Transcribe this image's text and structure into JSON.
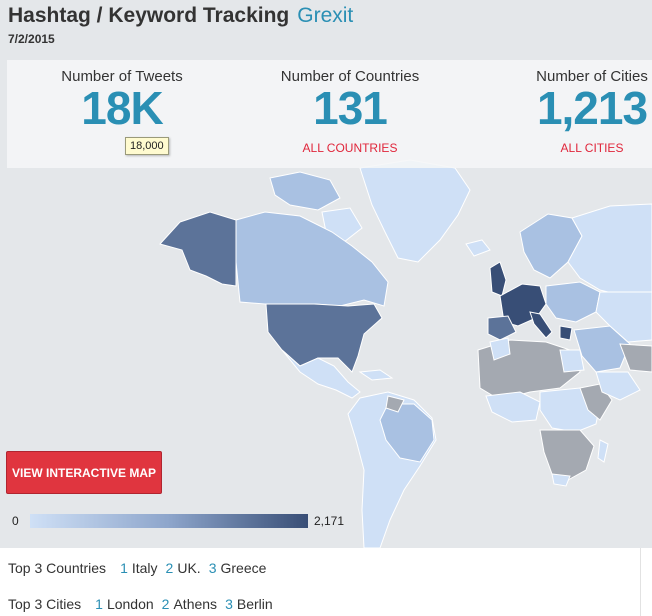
{
  "header": {
    "title": "Hashtag / Keyword Tracking",
    "keyword": "Grexit",
    "date": "7/2/2015"
  },
  "stats": {
    "tweets": {
      "label": "Number of Tweets",
      "value": "18K",
      "tooltip": "18,000"
    },
    "countries": {
      "label": "Number of Countries",
      "value": "131",
      "link": "ALL COUNTRIES"
    },
    "cities": {
      "label": "Number of Cities",
      "value": "1,213",
      "link": "ALL CITIES"
    }
  },
  "map": {
    "button_label": "VIEW INTERACTIVE MAP",
    "legend": {
      "min": "0",
      "max": "2,171"
    },
    "colors": {
      "background": "#e4e7ea",
      "no_data": "#a4a9b1",
      "light": "#cfe0f6",
      "medium": "#a9c1e2",
      "dark": "#5c7399",
      "darkest": "#384e76"
    }
  },
  "top": {
    "countries": {
      "label": "Top 3 Countries",
      "items": [
        {
          "rank": "1",
          "name": "Italy"
        },
        {
          "rank": "2",
          "name": "UK."
        },
        {
          "rank": "3",
          "name": "Greece"
        }
      ]
    },
    "cities": {
      "label": "Top 3 Cities",
      "items": [
        {
          "rank": "1",
          "name": "London"
        },
        {
          "rank": "2",
          "name": "Athens"
        },
        {
          "rank": "3",
          "name": "Berlin"
        }
      ]
    }
  },
  "colors": {
    "accent": "#2a8fb4",
    "link_red": "#e0263b",
    "button_red": "#e0353f"
  }
}
